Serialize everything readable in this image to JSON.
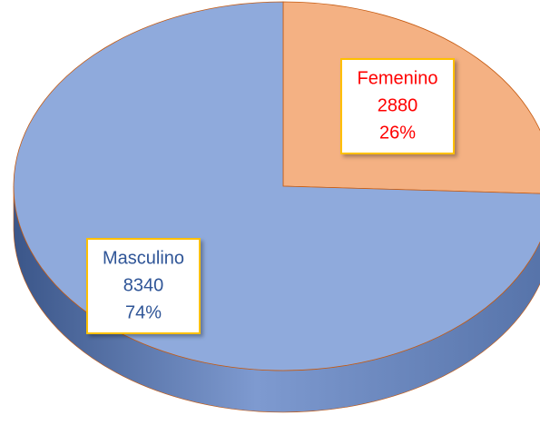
{
  "chart_data": {
    "type": "pie",
    "categories": [
      "Femenino",
      "Masculino"
    ],
    "values": [
      2880,
      8340
    ],
    "percent_labels": [
      "26%",
      "74%"
    ],
    "colors": [
      "#f4b183",
      "#8faadc"
    ],
    "label_colors": [
      "#ff0000",
      "#2f5597"
    ]
  }
}
